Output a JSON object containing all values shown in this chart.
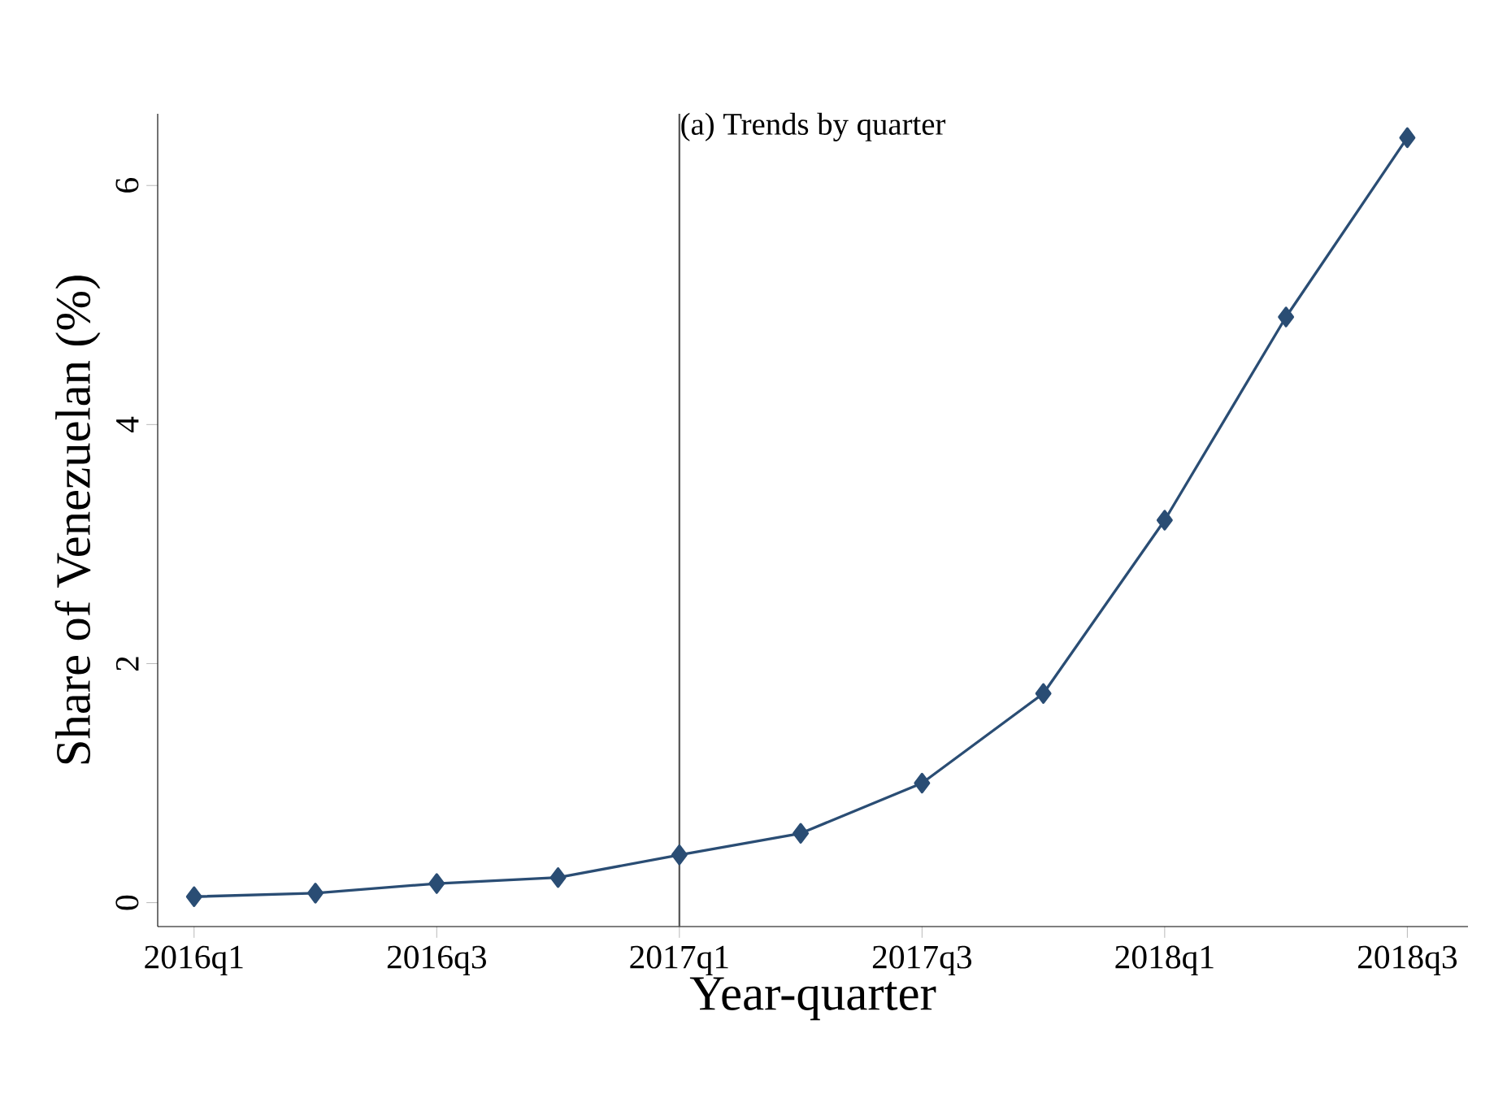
{
  "chart_data": {
    "type": "line",
    "title": "(a) Trends by quarter",
    "xlabel": "Year-quarter",
    "ylabel": "Share of Venezuelan (%)",
    "categories": [
      "2016q1",
      null,
      "2016q3",
      null,
      "2017q1",
      null,
      "2017q3",
      null,
      "2018q1",
      null,
      "2018q3"
    ],
    "series": [
      {
        "color": "#2a4d74",
        "values": [
          0.05,
          0.08,
          0.16,
          0.21,
          0.4,
          0.58,
          1.0,
          1.75,
          3.2,
          4.9,
          6.4
        ]
      }
    ],
    "ylim": [
      -0.2,
      6.6
    ],
    "yticks": [
      0,
      2,
      4,
      6
    ],
    "ref_lines": [
      {
        "axis": "x",
        "value": "2017q1",
        "color": "#555555"
      }
    ],
    "marker": "diamond",
    "line_style": "solid",
    "grid": false,
    "legend": false
  }
}
